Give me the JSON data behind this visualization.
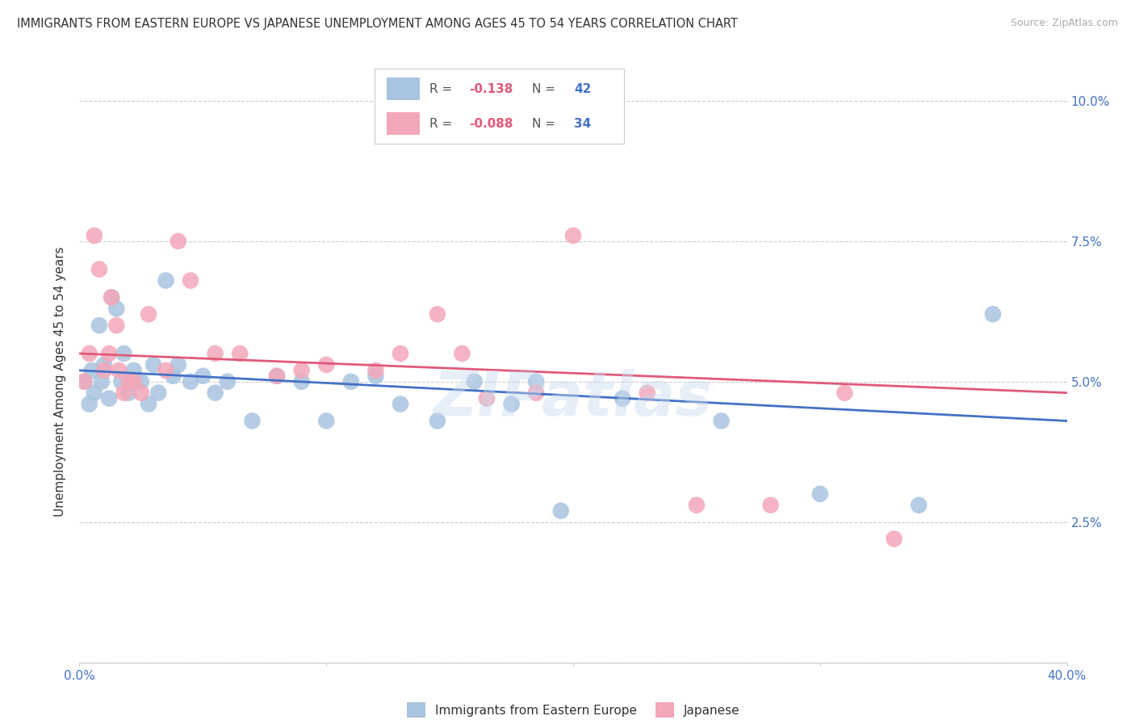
{
  "title": "IMMIGRANTS FROM EASTERN EUROPE VS JAPANESE UNEMPLOYMENT AMONG AGES 45 TO 54 YEARS CORRELATION CHART",
  "source": "Source: ZipAtlas.com",
  "ylabel": "Unemployment Among Ages 45 to 54 years",
  "watermark": "ZIPatlas",
  "legend_blue_rval": "-0.138",
  "legend_blue_nval": "42",
  "legend_pink_rval": "-0.088",
  "legend_pink_nval": "34",
  "blue_color": "#a8c4e0",
  "pink_color": "#f4a7b9",
  "blue_line_color": "#4472c4",
  "pink_line_color": "#e05a7a",
  "title_color": "#333333",
  "axis_label_color": "#4472c4",
  "legend_text_color": "#4472c4",
  "legend_rv_color": "#e05a7a",
  "background_color": "#ffffff",
  "grid_color": "#cccccc",
  "xmin": 0.0,
  "xmax": 0.4,
  "ymin": 0.0,
  "ymax": 0.1,
  "yticks": [
    0.0,
    0.025,
    0.05,
    0.075,
    0.1
  ],
  "ytick_labels": [
    "",
    "2.5%",
    "5.0%",
    "7.5%",
    "10.0%"
  ],
  "xticks": [
    0.0,
    0.1,
    0.2,
    0.3,
    0.4
  ],
  "xtick_labels": [
    "0.0%",
    "",
    "",
    "",
    "40.0%"
  ],
  "blue_x": [
    0.002,
    0.004,
    0.005,
    0.006,
    0.008,
    0.009,
    0.01,
    0.012,
    0.013,
    0.015,
    0.017,
    0.018,
    0.02,
    0.022,
    0.025,
    0.028,
    0.03,
    0.032,
    0.035,
    0.038,
    0.04,
    0.045,
    0.05,
    0.055,
    0.06,
    0.07,
    0.08,
    0.09,
    0.1,
    0.11,
    0.12,
    0.13,
    0.145,
    0.16,
    0.175,
    0.185,
    0.195,
    0.22,
    0.26,
    0.3,
    0.34,
    0.37
  ],
  "blue_y": [
    0.05,
    0.046,
    0.052,
    0.048,
    0.06,
    0.05,
    0.053,
    0.047,
    0.065,
    0.063,
    0.05,
    0.055,
    0.048,
    0.052,
    0.05,
    0.046,
    0.053,
    0.048,
    0.068,
    0.051,
    0.053,
    0.05,
    0.051,
    0.048,
    0.05,
    0.043,
    0.051,
    0.05,
    0.043,
    0.05,
    0.051,
    0.046,
    0.043,
    0.05,
    0.046,
    0.05,
    0.027,
    0.047,
    0.043,
    0.03,
    0.028,
    0.062
  ],
  "pink_x": [
    0.002,
    0.004,
    0.006,
    0.008,
    0.01,
    0.012,
    0.013,
    0.015,
    0.016,
    0.018,
    0.02,
    0.022,
    0.025,
    0.028,
    0.035,
    0.04,
    0.045,
    0.055,
    0.065,
    0.08,
    0.09,
    0.1,
    0.12,
    0.13,
    0.145,
    0.155,
    0.165,
    0.185,
    0.2,
    0.23,
    0.25,
    0.28,
    0.31,
    0.33
  ],
  "pink_y": [
    0.05,
    0.055,
    0.076,
    0.07,
    0.052,
    0.055,
    0.065,
    0.06,
    0.052,
    0.048,
    0.05,
    0.05,
    0.048,
    0.062,
    0.052,
    0.075,
    0.068,
    0.055,
    0.055,
    0.051,
    0.052,
    0.053,
    0.052,
    0.055,
    0.062,
    0.055,
    0.047,
    0.048,
    0.076,
    0.048,
    0.028,
    0.028,
    0.048,
    0.022
  ],
  "blue_line_x0": 0.0,
  "blue_line_y0": 0.052,
  "blue_line_x1": 0.4,
  "blue_line_y1": 0.043,
  "pink_line_x0": 0.0,
  "pink_line_y0": 0.055,
  "pink_line_x1": 0.4,
  "pink_line_y1": 0.048
}
